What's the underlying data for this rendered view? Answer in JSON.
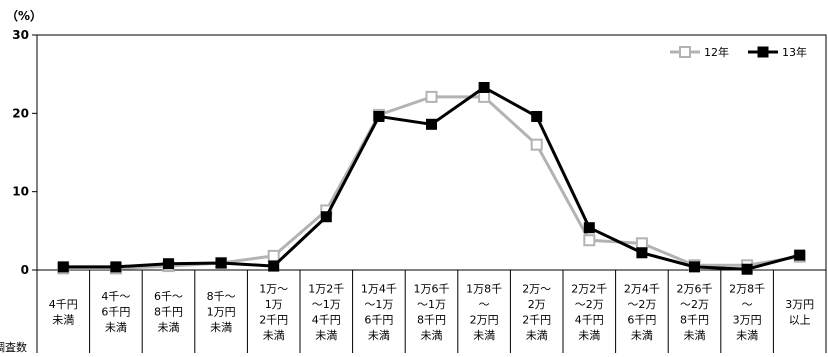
{
  "chart_data": {
    "type": "line",
    "title": "",
    "unit_label": "（%）",
    "ylabel": "",
    "ylim": [
      0,
      30
    ],
    "yticks": [
      0,
      10,
      20,
      30
    ],
    "grid": false,
    "legend_position": "top-right",
    "categories": [
      [
        "4千円",
        "未満"
      ],
      [
        "4千～",
        "6千円",
        "未満"
      ],
      [
        "6千～",
        "8千円",
        "未満"
      ],
      [
        "8千～",
        "1万円",
        "未満"
      ],
      [
        "1万～",
        "1万",
        "2千円",
        "未満"
      ],
      [
        "1万2千",
        "～1万",
        "4千円",
        "未満"
      ],
      [
        "1万4千",
        "～1万",
        "6千円",
        "未満"
      ],
      [
        "1万6千",
        "～1万",
        "8千円",
        "未満"
      ],
      [
        "1万8千",
        "～",
        "2万円",
        "未満"
      ],
      [
        "2万～",
        "2万",
        "2千円",
        "未満"
      ],
      [
        "2万2千",
        "～2万",
        "4千円",
        "未満"
      ],
      [
        "2万4千",
        "～2万",
        "6千円",
        "未満"
      ],
      [
        "2万6千",
        "～2万",
        "8千円",
        "未満"
      ],
      [
        "2万8千",
        "～",
        "3万円",
        "未満"
      ],
      [
        "3万円",
        "以上"
      ]
    ],
    "series": [
      {
        "name": "12年",
        "color": "#b3b3b3",
        "marker": "open-square",
        "values": [
          0.2,
          0.2,
          0.5,
          0.9,
          1.8,
          7.6,
          19.8,
          22.1,
          22.1,
          16.0,
          3.8,
          3.4,
          0.6,
          0.6,
          1.7
        ]
      },
      {
        "name": "13年",
        "color": "#000000",
        "marker": "filled-square",
        "values": [
          0.4,
          0.4,
          0.8,
          0.9,
          0.5,
          6.8,
          19.6,
          18.6,
          23.3,
          19.6,
          5.4,
          2.2,
          0.4,
          0.1,
          1.9
        ]
      }
    ],
    "row_label_fragment": "調査数"
  }
}
